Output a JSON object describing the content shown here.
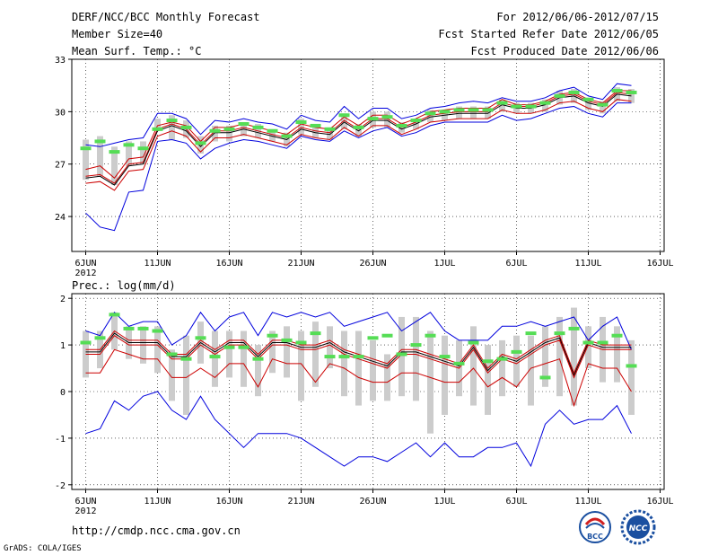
{
  "header": {
    "title_line1": "DERF/NCC/BCC Monthly Forecast",
    "title_line2": "Member Size=40",
    "title_line3": "Mean Surf. Temp.: °C",
    "right_line1": "For 2012/06/06-2012/07/15",
    "right_line2": "Fcst Started Refer Date 2012/06/05",
    "right_line3": "Fcst Produced Date 2012/06/06"
  },
  "footer": {
    "url": "http://cmdp.ncc.cma.gov.cn",
    "grads": "GrADS: COLA/IGES",
    "logo_bcc": "BCC",
    "logo_ncc": "NCC"
  },
  "colors": {
    "max": "#0000dd",
    "min": "#0000dd",
    "mean": "#000000",
    "spread": "#cc0000",
    "box": "#cccccc",
    "obs": "#55dd55"
  },
  "chart_data": [
    {
      "type": "line",
      "title": "Mean Surf. Temp.: °C",
      "xlabel": "",
      "ylabel": "",
      "x_tick_labels": [
        "6JUN",
        "11JUN",
        "16JUN",
        "21JUN",
        "26JUN",
        "1JUL",
        "6JUL",
        "11JUL",
        "16JUL"
      ],
      "x_year_label": "2012",
      "ylim": [
        22,
        33
      ],
      "y_ticks": [
        24,
        27,
        30,
        33
      ],
      "grid": true,
      "series": [
        {
          "name": "max",
          "values": [
            28.1,
            28.0,
            28.2,
            28.4,
            28.5,
            29.9,
            29.9,
            29.6,
            28.7,
            29.5,
            29.4,
            29.6,
            29.4,
            29.3,
            29.0,
            29.8,
            29.5,
            29.4,
            30.3,
            29.6,
            30.2,
            30.2,
            29.6,
            29.8,
            30.2,
            30.3,
            30.5,
            30.6,
            30.5,
            30.8,
            30.6,
            30.6,
            30.8,
            31.2,
            31.4,
            30.9,
            30.7,
            31.6,
            31.5
          ]
        },
        {
          "name": "mean_upper",
          "values": [
            26.3,
            26.4,
            25.9,
            27.0,
            27.1,
            29.0,
            29.3,
            29.0,
            28.1,
            28.9,
            28.9,
            29.1,
            28.9,
            28.7,
            28.5,
            29.1,
            28.9,
            28.8,
            29.5,
            29.0,
            29.6,
            29.6,
            29.1,
            29.4,
            29.8,
            29.9,
            30.0,
            30.0,
            30.0,
            30.5,
            30.3,
            30.3,
            30.5,
            30.9,
            31.0,
            30.6,
            30.4,
            31.1,
            31.0
          ]
        },
        {
          "name": "mean",
          "values": [
            26.2,
            26.3,
            25.8,
            26.9,
            27.0,
            28.9,
            29.2,
            28.9,
            28.0,
            28.8,
            28.8,
            29.0,
            28.8,
            28.6,
            28.4,
            29.0,
            28.8,
            28.7,
            29.4,
            28.9,
            29.5,
            29.5,
            29.0,
            29.3,
            29.7,
            29.8,
            29.9,
            29.9,
            29.9,
            30.4,
            30.2,
            30.2,
            30.4,
            30.8,
            30.9,
            30.5,
            30.3,
            31.0,
            30.9
          ]
        },
        {
          "name": "mean_lower",
          "values": [
            25.9,
            26.0,
            25.5,
            26.6,
            26.7,
            28.6,
            28.9,
            28.6,
            27.7,
            28.5,
            28.5,
            28.7,
            28.5,
            28.3,
            28.1,
            28.7,
            28.5,
            28.4,
            29.1,
            28.6,
            29.2,
            29.2,
            28.7,
            29.0,
            29.4,
            29.5,
            29.6,
            29.6,
            29.6,
            30.1,
            29.9,
            29.9,
            30.1,
            30.5,
            30.6,
            30.2,
            30.0,
            30.7,
            30.6
          ]
        },
        {
          "name": "spread_low",
          "values": [
            26.7,
            26.9,
            26.2,
            27.3,
            27.4,
            29.2,
            29.4,
            29.2,
            28.3,
            29.1,
            29.1,
            29.3,
            29.1,
            28.9,
            28.7,
            29.3,
            29.1,
            29.0,
            29.7,
            29.2,
            29.8,
            29.8,
            29.3,
            29.6,
            30.0,
            30.1,
            30.2,
            30.2,
            30.2,
            30.7,
            30.4,
            30.4,
            30.6,
            31.0,
            31.1,
            30.7,
            30.5,
            31.2,
            31.2
          ]
        },
        {
          "name": "min",
          "values": [
            24.2,
            23.4,
            23.2,
            25.4,
            25.5,
            28.3,
            28.4,
            28.2,
            27.3,
            27.9,
            28.2,
            28.4,
            28.3,
            28.1,
            27.9,
            28.6,
            28.4,
            28.3,
            28.9,
            28.5,
            28.9,
            29.1,
            28.6,
            28.8,
            29.2,
            29.4,
            29.4,
            29.4,
            29.4,
            29.8,
            29.5,
            29.6,
            29.9,
            30.2,
            30.3,
            29.9,
            29.7,
            30.5,
            30.5
          ]
        }
      ],
      "boxes": [
        {
          "lo": 26.1,
          "hi": 28.4
        },
        {
          "lo": 26.3,
          "hi": 28.6
        },
        {
          "lo": 25.8,
          "hi": 28.0
        },
        {
          "lo": 26.9,
          "hi": 28.3
        },
        {
          "lo": 27.0,
          "hi": 28.3
        },
        {
          "lo": 28.9,
          "hi": 29.6
        },
        {
          "lo": 28.4,
          "hi": 29.8
        },
        {
          "lo": 28.5,
          "hi": 29.5
        },
        {
          "lo": 27.6,
          "hi": 28.6
        },
        {
          "lo": 28.3,
          "hi": 29.2
        },
        {
          "lo": 28.3,
          "hi": 29.2
        },
        {
          "lo": 28.6,
          "hi": 29.4
        },
        {
          "lo": 28.5,
          "hi": 29.3
        },
        {
          "lo": 28.3,
          "hi": 29.0
        },
        {
          "lo": 28.0,
          "hi": 28.8
        },
        {
          "lo": 28.7,
          "hi": 29.6
        },
        {
          "lo": 28.5,
          "hi": 29.2
        },
        {
          "lo": 28.4,
          "hi": 29.1
        },
        {
          "lo": 29.0,
          "hi": 29.9
        },
        {
          "lo": 28.6,
          "hi": 29.3
        },
        {
          "lo": 29.1,
          "hi": 30.0
        },
        {
          "lo": 29.1,
          "hi": 30.0
        },
        {
          "lo": 28.8,
          "hi": 29.4
        },
        {
          "lo": 29.0,
          "hi": 29.6
        },
        {
          "lo": 29.4,
          "hi": 30.1
        },
        {
          "lo": 29.5,
          "hi": 30.1
        },
        {
          "lo": 29.6,
          "hi": 30.3
        },
        {
          "lo": 29.6,
          "hi": 30.3
        },
        {
          "lo": 29.6,
          "hi": 30.3
        },
        {
          "lo": 30.0,
          "hi": 30.7
        },
        {
          "lo": 29.9,
          "hi": 30.5
        },
        {
          "lo": 29.9,
          "hi": 30.5
        },
        {
          "lo": 30.0,
          "hi": 30.7
        },
        {
          "lo": 30.4,
          "hi": 31.2
        },
        {
          "lo": 30.5,
          "hi": 31.3
        },
        {
          "lo": 30.1,
          "hi": 30.8
        },
        {
          "lo": 29.9,
          "hi": 30.6
        },
        {
          "lo": 30.6,
          "hi": 31.4
        },
        {
          "lo": 30.5,
          "hi": 31.3
        }
      ],
      "obs_marks": [
        27.9,
        28.3,
        27.7,
        28.1,
        27.9,
        29.0,
        29.5,
        29.1,
        28.2,
        28.9,
        29.0,
        29.3,
        29.1,
        28.9,
        28.6,
        29.4,
        29.2,
        29.0,
        29.8,
        29.1,
        29.6,
        29.7,
        29.2,
        29.5,
        29.9,
        30.0,
        30.1,
        30.1,
        30.1,
        30.5,
        30.3,
        30.3,
        30.5,
        30.9,
        31.1,
        30.7,
        30.4,
        31.2,
        31.1
      ]
    },
    {
      "type": "line",
      "title": "Prec.: log(mm/d)",
      "xlabel": "",
      "ylabel": "",
      "x_tick_labels": [
        "6JUN",
        "11JUN",
        "16JUN",
        "21JUN",
        "26JUN",
        "1JUL",
        "6JUL",
        "11JUL",
        "16JUL"
      ],
      "x_year_label": "2012",
      "ylim": [
        -2.1,
        2.1
      ],
      "y_ticks": [
        -2,
        -1,
        0,
        1,
        2
      ],
      "grid": true,
      "series": [
        {
          "name": "max",
          "values": [
            1.3,
            1.2,
            1.7,
            1.4,
            1.5,
            1.5,
            1.0,
            1.2,
            1.7,
            1.3,
            1.6,
            1.7,
            1.2,
            1.7,
            1.6,
            1.7,
            1.6,
            1.7,
            1.4,
            1.5,
            1.6,
            1.7,
            1.3,
            1.5,
            1.7,
            1.3,
            1.1,
            1.1,
            1.1,
            1.4,
            1.4,
            1.5,
            1.4,
            1.5,
            1.6,
            1.1,
            1.4,
            1.6,
            0.9
          ]
        },
        {
          "name": "mean_upper",
          "values": [
            0.9,
            0.9,
            1.3,
            1.1,
            1.1,
            1.1,
            0.8,
            0.8,
            1.1,
            0.9,
            1.1,
            1.1,
            0.8,
            1.1,
            1.1,
            1.0,
            1.0,
            1.1,
            0.9,
            0.8,
            0.7,
            0.6,
            0.9,
            0.9,
            0.8,
            0.7,
            0.6,
            1.0,
            0.5,
            0.8,
            0.7,
            0.9,
            1.1,
            1.2,
            0.4,
            1.1,
            1.0,
            1.0,
            1.0
          ]
        },
        {
          "name": "mean",
          "values": [
            0.85,
            0.85,
            1.25,
            1.05,
            1.05,
            1.05,
            0.75,
            0.75,
            1.05,
            0.85,
            1.05,
            1.05,
            0.75,
            1.05,
            1.05,
            0.95,
            0.95,
            1.05,
            0.85,
            0.75,
            0.65,
            0.55,
            0.85,
            0.85,
            0.75,
            0.65,
            0.55,
            0.95,
            0.45,
            0.75,
            0.65,
            0.85,
            1.05,
            1.15,
            0.35,
            1.05,
            0.95,
            0.95,
            0.95
          ]
        },
        {
          "name": "mean_lower",
          "values": [
            0.8,
            0.8,
            1.2,
            1.0,
            1.0,
            1.0,
            0.7,
            0.7,
            1.0,
            0.8,
            1.0,
            1.0,
            0.7,
            1.0,
            1.0,
            0.9,
            0.9,
            1.0,
            0.8,
            0.7,
            0.6,
            0.5,
            0.8,
            0.8,
            0.7,
            0.6,
            0.5,
            0.9,
            0.4,
            0.7,
            0.6,
            0.8,
            1.0,
            1.1,
            0.3,
            1.0,
            0.9,
            0.9,
            0.9
          ]
        },
        {
          "name": "spread_low",
          "values": [
            0.4,
            0.4,
            0.9,
            0.8,
            0.7,
            0.7,
            0.3,
            0.3,
            0.5,
            0.3,
            0.6,
            0.6,
            0.1,
            0.7,
            0.6,
            0.6,
            0.2,
            0.6,
            0.5,
            0.3,
            0.2,
            0.2,
            0.4,
            0.4,
            0.3,
            0.2,
            0.2,
            0.5,
            0.1,
            0.3,
            0.1,
            0.5,
            0.6,
            0.7,
            -0.3,
            0.6,
            0.5,
            0.5,
            0.0
          ]
        },
        {
          "name": "min",
          "values": [
            -0.9,
            -0.8,
            -0.2,
            -0.4,
            -0.1,
            0.0,
            -0.4,
            -0.6,
            -0.1,
            -0.6,
            -0.9,
            -1.2,
            -0.9,
            -0.9,
            -0.9,
            -1.0,
            -1.2,
            -1.4,
            -1.6,
            -1.4,
            -1.4,
            -1.5,
            -1.3,
            -1.1,
            -1.4,
            -1.1,
            -1.4,
            -1.4,
            -1.2,
            -1.2,
            -1.1,
            -1.6,
            -0.7,
            -0.4,
            -0.7,
            -0.6,
            -0.6,
            -0.3,
            -0.9
          ]
        }
      ],
      "boxes": [
        {
          "lo": 0.3,
          "hi": 1.3
        },
        {
          "lo": 0.5,
          "hi": 1.3
        },
        {
          "lo": 0.9,
          "hi": 1.7
        },
        {
          "lo": 0.7,
          "hi": 1.4
        },
        {
          "lo": 0.6,
          "hi": 1.4
        },
        {
          "lo": 0.4,
          "hi": 1.4
        },
        {
          "lo": -0.2,
          "hi": 0.9
        },
        {
          "lo": -0.5,
          "hi": 1.2
        },
        {
          "lo": 0.6,
          "hi": 1.5
        },
        {
          "lo": 0.1,
          "hi": 1.3
        },
        {
          "lo": 0.3,
          "hi": 1.3
        },
        {
          "lo": 0.1,
          "hi": 1.3
        },
        {
          "lo": -0.1,
          "hi": 1.0
        },
        {
          "lo": 0.4,
          "hi": 1.3
        },
        {
          "lo": 0.3,
          "hi": 1.4
        },
        {
          "lo": -0.2,
          "hi": 1.3
        },
        {
          "lo": 0.1,
          "hi": 1.5
        },
        {
          "lo": 0.5,
          "hi": 1.4
        },
        {
          "lo": -0.1,
          "hi": 1.3
        },
        {
          "lo": -0.3,
          "hi": 1.3
        },
        {
          "lo": -0.2,
          "hi": 1.1
        },
        {
          "lo": -0.2,
          "hi": 0.8
        },
        {
          "lo": -0.1,
          "hi": 1.6
        },
        {
          "lo": -0.2,
          "hi": 1.6
        },
        {
          "lo": -0.9,
          "hi": 1.3
        },
        {
          "lo": -0.5,
          "hi": 1.2
        },
        {
          "lo": -0.1,
          "hi": 1.1
        },
        {
          "lo": -0.3,
          "hi": 1.4
        },
        {
          "lo": -0.5,
          "hi": 1.0
        },
        {
          "lo": -0.1,
          "hi": 1.1
        },
        {
          "lo": 0.1,
          "hi": 1.2
        },
        {
          "lo": -0.3,
          "hi": 1.2
        },
        {
          "lo": 0.1,
          "hi": 1.4
        },
        {
          "lo": -0.1,
          "hi": 1.6
        },
        {
          "lo": -0.3,
          "hi": 1.8
        },
        {
          "lo": 0.5,
          "hi": 1.4
        },
        {
          "lo": 0.2,
          "hi": 1.6
        },
        {
          "lo": 0.2,
          "hi": 1.4
        },
        {
          "lo": -0.5,
          "hi": 1.1
        }
      ],
      "obs_marks": [
        1.05,
        1.15,
        1.65,
        1.35,
        1.35,
        1.3,
        0.8,
        0.7,
        1.15,
        0.75,
        0.95,
        0.95,
        0.7,
        1.2,
        1.1,
        1.05,
        1.25,
        0.75,
        0.75,
        0.75,
        1.15,
        1.2,
        0.8,
        1.0,
        1.2,
        0.75,
        0.6,
        1.05,
        0.65,
        0.7,
        0.85,
        1.25,
        0.3,
        1.25,
        1.35,
        1.05,
        1.05,
        1.2,
        0.55
      ]
    }
  ]
}
